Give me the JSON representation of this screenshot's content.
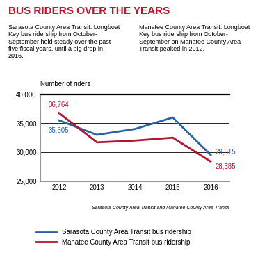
{
  "chart_data": {
    "type": "line",
    "title": "BUS RIDERS OVER THE YEARS",
    "annotations": [
      "Sarasota County Area Transit: Longboat Key bus ridership from October-September held steady over the past five fiscal years, until a big drop in 2016.",
      "Manatee County Area Transit: Longboat Key bus ridership from October-September on Manatee County Area Transit peaked in 2012."
    ],
    "y_label": "Number of riders",
    "source": "Sarasota County Area Transit and Manatee County Area Transit",
    "x": [
      2012,
      2013,
      2014,
      2015,
      2016
    ],
    "series": [
      {
        "name": "Sarasota County Area Transit bus ridership",
        "color": "#2563a6",
        "values": [
          35505,
          33000,
          34000,
          36000,
          29515
        ],
        "value_labels": [
          "35,505",
          null,
          null,
          null,
          "29,515"
        ]
      },
      {
        "name": "Manatee County Area Transit bus ridership",
        "color": "#b3162f",
        "values": [
          36764,
          31700,
          32000,
          32500,
          28385
        ],
        "value_labels": [
          "36,764",
          null,
          null,
          null,
          "28,385"
        ]
      }
    ],
    "xlim": [
      2011.5,
      2016.5
    ],
    "xticks": [
      2012,
      2013,
      2014,
      2015,
      2016
    ],
    "ylim": [
      25000,
      40000
    ],
    "yticks": [
      {
        "value": 25000,
        "label": "25,000"
      },
      {
        "value": 30000,
        "label": "30,000"
      },
      {
        "value": 35000,
        "label": "35,000"
      },
      {
        "value": 40000,
        "label": "40,000"
      }
    ],
    "grid": true,
    "data_labels": true,
    "legend": "lower left"
  }
}
